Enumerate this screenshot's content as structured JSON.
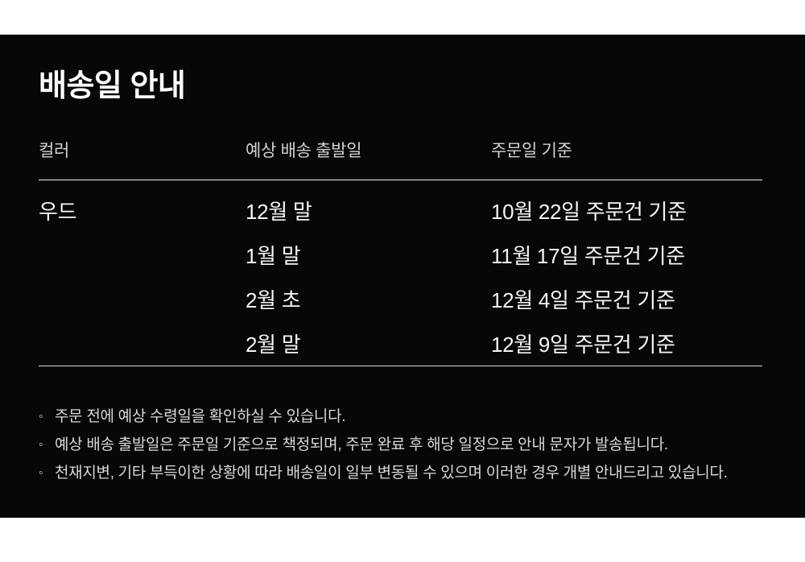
{
  "page": {
    "title": "배송일 안내"
  },
  "table": {
    "headers": [
      "컬러",
      "예상 배송 출발일",
      "주문일 기준"
    ],
    "rows": [
      {
        "color": "우드",
        "ship_date": "12월 말",
        "order_basis": "10월 22일 주문건 기준"
      },
      {
        "color": "",
        "ship_date": "1월 말",
        "order_basis": "11월 17일 주문건 기준"
      },
      {
        "color": "",
        "ship_date": "2월 초",
        "order_basis": "12월 4일 주문건 기준"
      },
      {
        "color": "",
        "ship_date": "2월 말",
        "order_basis": "12월 9일 주문건 기준"
      }
    ]
  },
  "notes": {
    "bullet": "◦",
    "items": [
      "주문 전에 예상 수령일을 확인하실 수 있습니다.",
      "예상 배송 출발일은 주문일 기준으로 책정되며, 주문 완료 후 해당 일정으로 안내 문자가 발송됩니다.",
      "천재지변, 기타 부득이한 상황에 따라 배송일이 일부 변동될 수 있으며 이러한 경우 개별 안내드리고 있습니다."
    ]
  },
  "colors": {
    "page_bg": "#ffffff",
    "panel_bg": "#070707",
    "title_text": "#ffffff",
    "header_text": "#d2d2d2",
    "row_text": "#f5f5f5",
    "note_text": "#d8d8d8",
    "divider_top": "#f0f0f0",
    "divider_bottom": "#dcdcdc"
  }
}
